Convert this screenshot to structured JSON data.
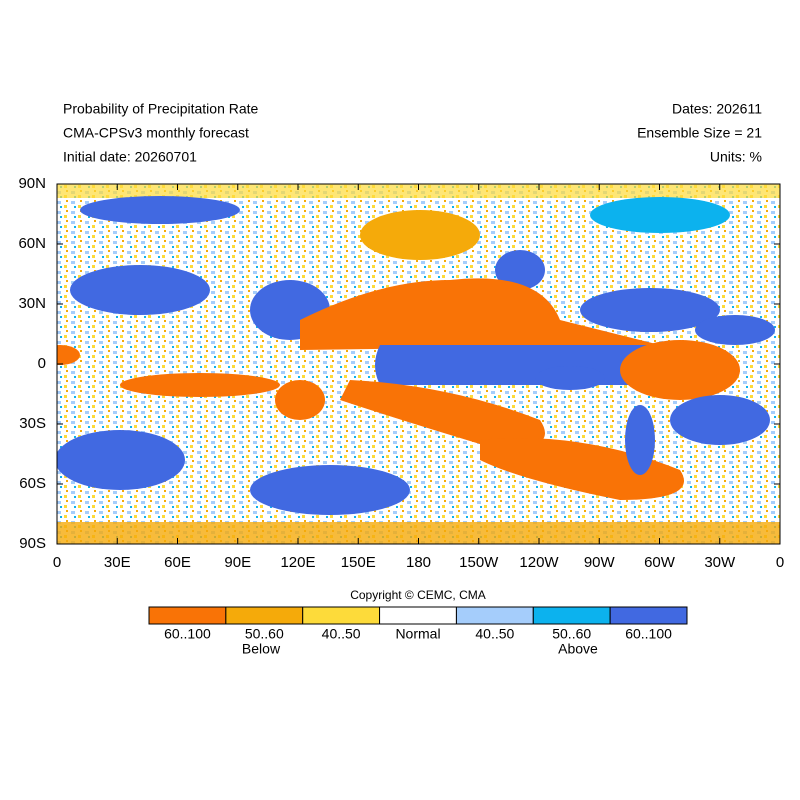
{
  "header": {
    "left": [
      "Probability of Precipitation Rate",
      "CMA-CPSv3 monthly forecast",
      "Initial date: 20260701"
    ],
    "right": [
      "Dates: 202611",
      "Ensemble Size = 21",
      "Units: %"
    ]
  },
  "map": {
    "xticks": [
      "0",
      "30E",
      "60E",
      "90E",
      "120E",
      "150E",
      "180",
      "150W",
      "120W",
      "90W",
      "60W",
      "30W",
      "0"
    ],
    "yticks": [
      "90N",
      "60N",
      "30N",
      "0",
      "30S",
      "60S",
      "90S"
    ]
  },
  "copyright": "Copyright © CEMC, CMA",
  "legend": {
    "items": [
      {
        "label": "60..100",
        "color": "#f97306"
      },
      {
        "label": "50..60",
        "color": "#f5aa0a"
      },
      {
        "label": "40..50",
        "color": "#fddb3a"
      },
      {
        "label": "Normal",
        "color": "#ffffff"
      },
      {
        "label": "40..50",
        "color": "#a5cdfb"
      },
      {
        "label": "50..60",
        "color": "#0cb2ee"
      },
      {
        "label": "60..100",
        "color": "#4169e1"
      }
    ],
    "below": "Below",
    "above": "Above"
  }
}
